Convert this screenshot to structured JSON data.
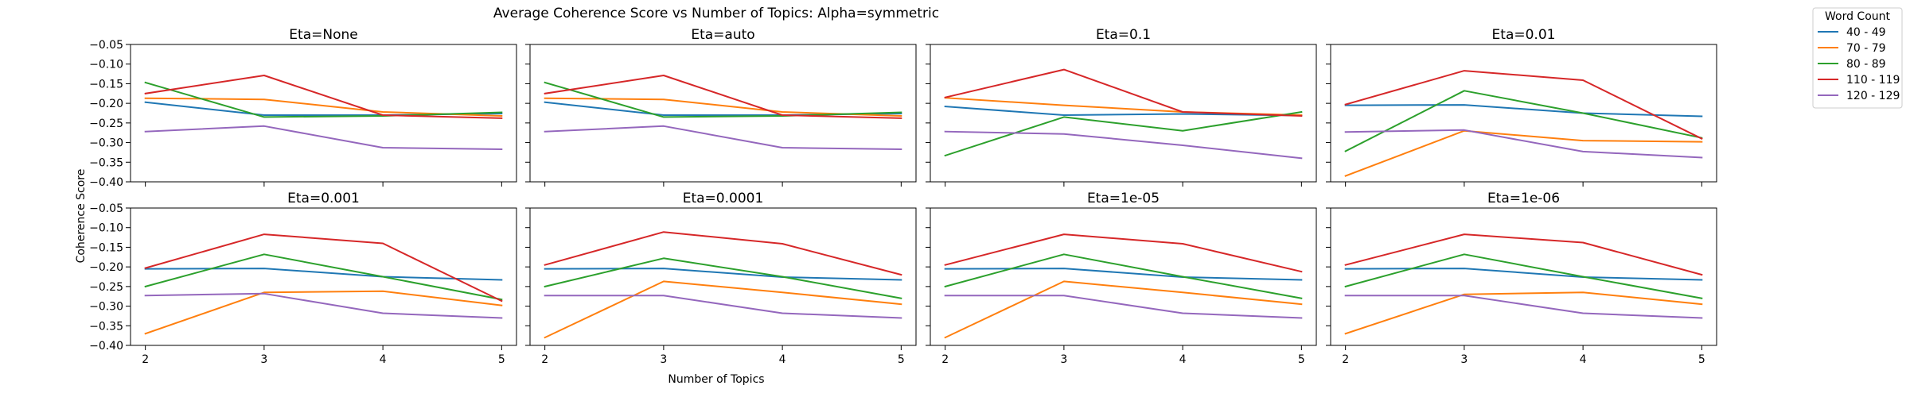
{
  "chart_data": {
    "type": "line",
    "title": "Average Coherence Score vs Number of Topics: Alpha=symmetric",
    "xlabel": "Number of Topics",
    "ylabel": "Coherence Score",
    "x": [
      2,
      3,
      4,
      5
    ],
    "xticks": [
      "2",
      "3",
      "4",
      "5"
    ],
    "yticks": [
      "−0.05",
      "−0.10",
      "−0.15",
      "−0.20",
      "−0.25",
      "−0.30",
      "−0.35",
      "−0.40"
    ],
    "ylim": [
      -0.4,
      -0.05
    ],
    "legend": {
      "title": "Word Count",
      "placement": "top-right outside",
      "entries": [
        "40 - 49",
        "70 - 79",
        "80 - 89",
        "110 - 119",
        "120 - 129"
      ]
    },
    "colors": [
      "#1f77b4",
      "#ff7f0e",
      "#2ca02c",
      "#d62728",
      "#9467bd"
    ],
    "panels": [
      {
        "title": "Eta=None",
        "series": [
          {
            "name": "40 - 49",
            "values": [
              -0.197,
              -0.23,
              -0.23,
              -0.226
            ]
          },
          {
            "name": "70 - 79",
            "values": [
              -0.187,
              -0.19,
              -0.222,
              -0.232
            ]
          },
          {
            "name": "80 - 89",
            "values": [
              -0.147,
              -0.235,
              -0.232,
              -0.223
            ]
          },
          {
            "name": "110 - 119",
            "values": [
              -0.175,
              -0.129,
              -0.23,
              -0.238
            ]
          },
          {
            "name": "120 - 129",
            "values": [
              -0.272,
              -0.258,
              -0.313,
              -0.317
            ]
          }
        ]
      },
      {
        "title": "Eta=auto",
        "series": [
          {
            "name": "40 - 49",
            "values": [
              -0.197,
              -0.23,
              -0.23,
              -0.226
            ]
          },
          {
            "name": "70 - 79",
            "values": [
              -0.187,
              -0.19,
              -0.222,
              -0.232
            ]
          },
          {
            "name": "80 - 89",
            "values": [
              -0.147,
              -0.235,
              -0.232,
              -0.223
            ]
          },
          {
            "name": "110 - 119",
            "values": [
              -0.175,
              -0.129,
              -0.23,
              -0.238
            ]
          },
          {
            "name": "120 - 129",
            "values": [
              -0.272,
              -0.258,
              -0.313,
              -0.317
            ]
          }
        ]
      },
      {
        "title": "Eta=0.1",
        "series": [
          {
            "name": "40 - 49",
            "values": [
              -0.208,
              -0.23,
              -0.227,
              -0.231
            ]
          },
          {
            "name": "70 - 79",
            "values": [
              -0.186,
              -0.205,
              -0.222,
              -0.23
            ]
          },
          {
            "name": "80 - 89",
            "values": [
              -0.333,
              -0.235,
              -0.27,
              -0.222
            ]
          },
          {
            "name": "110 - 119",
            "values": [
              -0.185,
              -0.114,
              -0.222,
              -0.232
            ]
          },
          {
            "name": "120 - 129",
            "values": [
              -0.272,
              -0.278,
              -0.307,
              -0.34
            ]
          }
        ]
      },
      {
        "title": "Eta=0.01",
        "series": [
          {
            "name": "40 - 49",
            "values": [
              -0.205,
              -0.204,
              -0.225,
              -0.233
            ]
          },
          {
            "name": "70 - 79",
            "values": [
              -0.385,
              -0.27,
              -0.295,
              -0.298
            ]
          },
          {
            "name": "80 - 89",
            "values": [
              -0.322,
              -0.168,
              -0.225,
              -0.288
            ]
          },
          {
            "name": "110 - 119",
            "values": [
              -0.203,
              -0.117,
              -0.141,
              -0.29
            ]
          },
          {
            "name": "120 - 129",
            "values": [
              -0.273,
              -0.268,
              -0.323,
              -0.338
            ]
          }
        ]
      },
      {
        "title": "Eta=0.001",
        "series": [
          {
            "name": "40 - 49",
            "values": [
              -0.205,
              -0.204,
              -0.225,
              -0.233
            ]
          },
          {
            "name": "70 - 79",
            "values": [
              -0.37,
              -0.265,
              -0.262,
              -0.298
            ]
          },
          {
            "name": "80 - 89",
            "values": [
              -0.25,
              -0.168,
              -0.225,
              -0.283
            ]
          },
          {
            "name": "110 - 119",
            "values": [
              -0.203,
              -0.117,
              -0.14,
              -0.287
            ]
          },
          {
            "name": "120 - 129",
            "values": [
              -0.273,
              -0.268,
              -0.318,
              -0.33
            ]
          }
        ]
      },
      {
        "title": "Eta=0.0001",
        "series": [
          {
            "name": "40 - 49",
            "values": [
              -0.205,
              -0.204,
              -0.226,
              -0.233
            ]
          },
          {
            "name": "70 - 79",
            "values": [
              -0.38,
              -0.237,
              -0.265,
              -0.295
            ]
          },
          {
            "name": "80 - 89",
            "values": [
              -0.25,
              -0.178,
              -0.225,
              -0.28
            ]
          },
          {
            "name": "110 - 119",
            "values": [
              -0.195,
              -0.111,
              -0.141,
              -0.22
            ]
          },
          {
            "name": "120 - 129",
            "values": [
              -0.273,
              -0.273,
              -0.318,
              -0.33
            ]
          }
        ]
      },
      {
        "title": "Eta=1e-05",
        "series": [
          {
            "name": "40 - 49",
            "values": [
              -0.205,
              -0.204,
              -0.226,
              -0.233
            ]
          },
          {
            "name": "70 - 79",
            "values": [
              -0.38,
              -0.237,
              -0.265,
              -0.295
            ]
          },
          {
            "name": "80 - 89",
            "values": [
              -0.25,
              -0.168,
              -0.225,
              -0.28
            ]
          },
          {
            "name": "110 - 119",
            "values": [
              -0.195,
              -0.117,
              -0.141,
              -0.212
            ]
          },
          {
            "name": "120 - 129",
            "values": [
              -0.273,
              -0.273,
              -0.318,
              -0.33
            ]
          }
        ]
      },
      {
        "title": "Eta=1e-06",
        "series": [
          {
            "name": "40 - 49",
            "values": [
              -0.205,
              -0.204,
              -0.226,
              -0.233
            ]
          },
          {
            "name": "70 - 79",
            "values": [
              -0.37,
              -0.27,
              -0.265,
              -0.295
            ]
          },
          {
            "name": "80 - 89",
            "values": [
              -0.25,
              -0.168,
              -0.225,
              -0.28
            ]
          },
          {
            "name": "110 - 119",
            "values": [
              -0.195,
              -0.117,
              -0.138,
              -0.22
            ]
          },
          {
            "name": "120 - 129",
            "values": [
              -0.273,
              -0.273,
              -0.318,
              -0.33
            ]
          }
        ]
      }
    ]
  }
}
